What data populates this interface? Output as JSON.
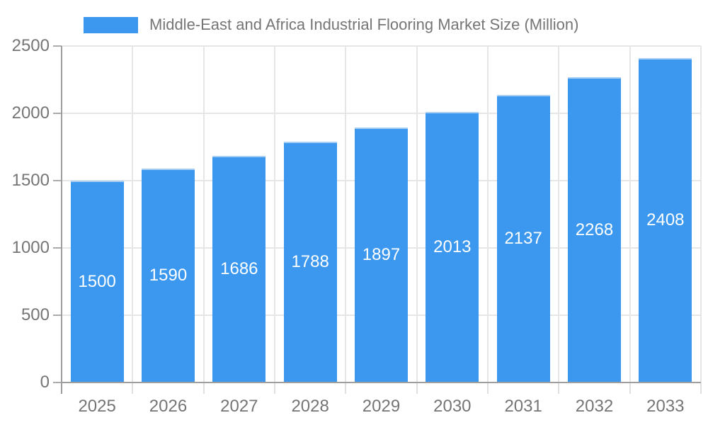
{
  "chart_data": {
    "type": "bar",
    "title": "Middle-East and Africa Industrial Flooring Market Size (Million)",
    "legend": {
      "position": "top",
      "label": "Middle-East and Africa Industrial Flooring Market Size (Million)"
    },
    "categories": [
      "2025",
      "2026",
      "2027",
      "2028",
      "2029",
      "2030",
      "2031",
      "2032",
      "2033"
    ],
    "series": [
      {
        "name": "Middle-East and Africa Industrial Flooring Market Size (Million)",
        "values": [
          1500,
          1590,
          1686,
          1788,
          1897,
          2013,
          2137,
          2268,
          2408
        ]
      }
    ],
    "xlabel": "",
    "ylabel": "",
    "ylim": [
      0,
      2500
    ],
    "yticks": [
      0,
      500,
      1000,
      1500,
      2000,
      2500
    ],
    "grid": true,
    "legend_position": "top",
    "colors": {
      "bar": "#3B98EE",
      "bar_stroke": "#A9CFF5",
      "value_label": "#FFFFFF",
      "axis_line": "#9E9E9E",
      "tick_line": "#ABABAB",
      "gridline": "#E6E6E6",
      "minor_tick": "#E0E0E0",
      "text": "#757575",
      "background": "#FFFFFF"
    }
  }
}
